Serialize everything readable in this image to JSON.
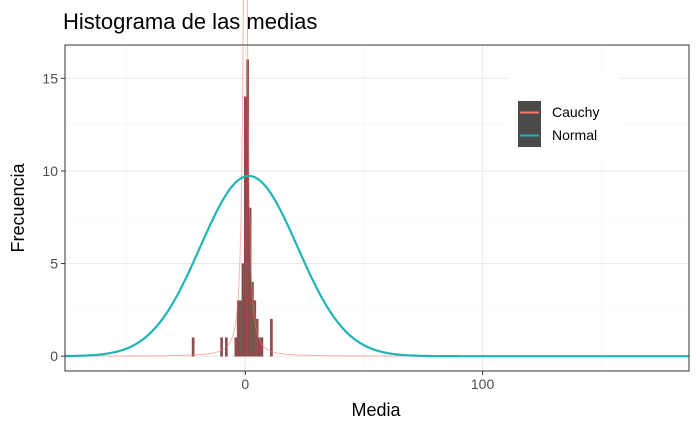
{
  "chart_data": {
    "type": "histogram",
    "title": "Histograma de las medias",
    "xlabel": "Media",
    "ylabel": "Frecuencia",
    "xlim": [
      -76,
      187
    ],
    "ylim": [
      -0.8,
      16.8
    ],
    "x_ticks": [
      0,
      100
    ],
    "y_ticks": [
      0,
      5,
      10,
      15
    ],
    "grid": true,
    "legend_position": "top-right",
    "colors": {
      "bar_fill": "#7e5656",
      "bar_outline": "#a33a3a",
      "cauchy": "#f8766d",
      "normal": "#1fb5b5",
      "legend_key_bg": "#4a4a4a",
      "grid_major": "#ebebeb",
      "grid_minor": "#f4f4f4",
      "panel_border": "#333333"
    },
    "bin_width": 0.9,
    "histogram": [
      {
        "x": -22,
        "count": 1
      },
      {
        "x": -10,
        "count": 1
      },
      {
        "x": -8,
        "count": 1
      },
      {
        "x": -4,
        "count": 1
      },
      {
        "x": -3,
        "count": 3
      },
      {
        "x": -2,
        "count": 3
      },
      {
        "x": -1,
        "count": 5
      },
      {
        "x": 0,
        "count": 14
      },
      {
        "x": 1,
        "count": 16
      },
      {
        "x": 2,
        "count": 8
      },
      {
        "x": 3,
        "count": 4
      },
      {
        "x": 4,
        "count": 3
      },
      {
        "x": 5,
        "count": 2
      },
      {
        "x": 6,
        "count": 1
      },
      {
        "x": 7,
        "count": 1
      },
      {
        "x": 11,
        "count": 2
      }
    ],
    "series": [
      {
        "name": "Cauchy",
        "distribution": "cauchy",
        "location": 0,
        "scale": 1,
        "n": 100
      },
      {
        "name": "Normal",
        "distribution": "normal",
        "mean": 1.5,
        "sd": 20.5,
        "n": 500
      }
    ]
  }
}
